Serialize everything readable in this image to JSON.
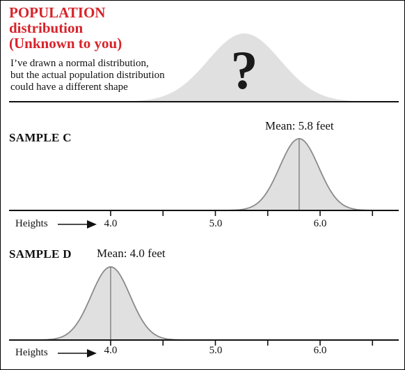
{
  "population": {
    "title_lines": [
      "POPULATION",
      "distribution",
      "(Unknown to you)"
    ],
    "note_lines": [
      "I’ve drawn a normal distribution,",
      "but the actual population distribution",
      "could have a different shape"
    ],
    "mark": "?"
  },
  "samples": [
    {
      "label": "SAMPLE C",
      "mean_text": "Mean: 5.8 feet",
      "mean": 5.8
    },
    {
      "label": "SAMPLE D",
      "mean_text": "Mean: 4.0 feet",
      "mean": 4.0
    }
  ],
  "axis": {
    "name": "Heights",
    "tick_labels": [
      "4.0",
      "5.0",
      "6.0"
    ]
  },
  "colors": {
    "title_red": "#d8232a",
    "curve_fill": "#e0e0e0",
    "curve_stroke": "#8a8a8a",
    "mean_line": "#6e6e6e"
  }
}
